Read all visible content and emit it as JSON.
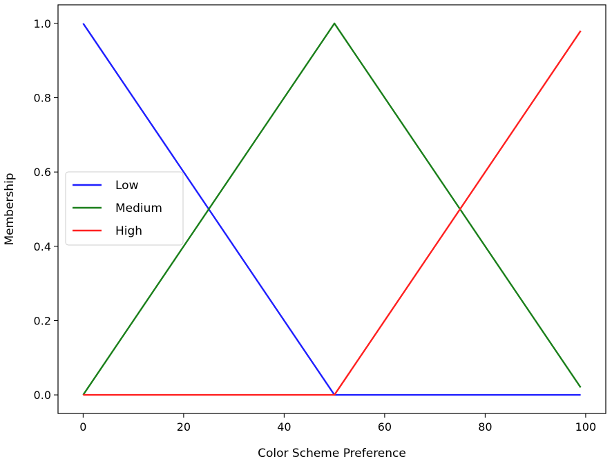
{
  "chart_data": {
    "type": "line",
    "title": "",
    "xlabel": "Color Scheme Preference",
    "ylabel": "Membership",
    "xlim": [
      -5,
      104
    ],
    "ylim": [
      -0.05,
      1.05
    ],
    "xticks": [
      0,
      20,
      40,
      60,
      80,
      100
    ],
    "yticks": [
      0.0,
      0.2,
      0.4,
      0.6,
      0.8,
      1.0
    ],
    "xtick_labels": [
      "0",
      "20",
      "40",
      "60",
      "80",
      "100"
    ],
    "ytick_labels": [
      "0.0",
      "0.2",
      "0.4",
      "0.6",
      "0.8",
      "1.0"
    ],
    "grid": false,
    "legend_position": "center-left",
    "series": [
      {
        "name": "Low",
        "color": "#1f1fff",
        "x": [
          0,
          50,
          99
        ],
        "y": [
          1.0,
          0.0,
          0.0
        ]
      },
      {
        "name": "Medium",
        "color": "#1a7f1a",
        "x": [
          0,
          50,
          99
        ],
        "y": [
          0.0,
          1.0,
          0.02
        ]
      },
      {
        "name": "High",
        "color": "#ff2020",
        "x": [
          0,
          50,
          99
        ],
        "y": [
          0.0,
          0.0,
          0.98
        ]
      }
    ]
  }
}
